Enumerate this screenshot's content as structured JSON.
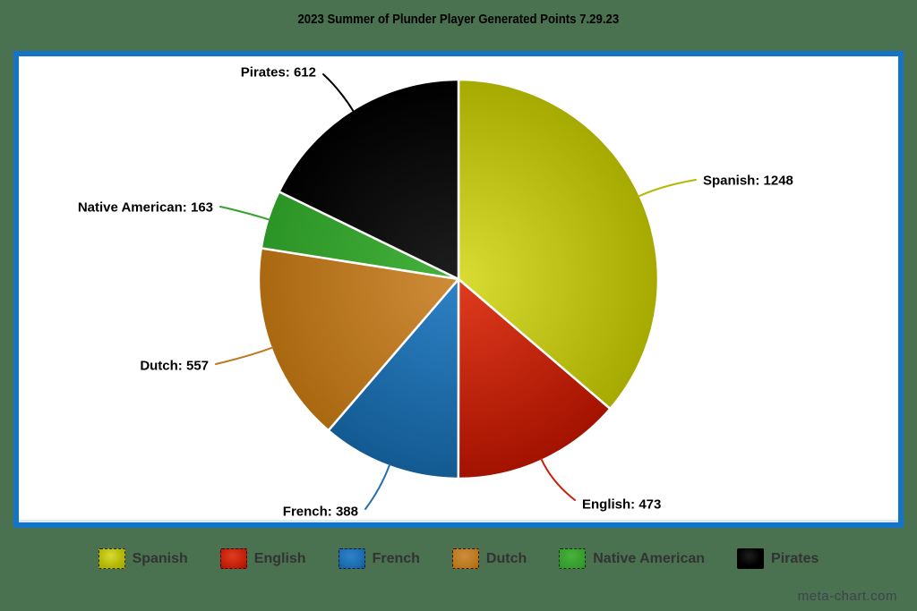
{
  "page": {
    "title": "2023 Summer of Plunder Player Generated Points 7.29.23",
    "watermark": "meta-chart.com",
    "background_color": "#4a7150",
    "chart_area_color": "#ffffff",
    "chart_border_color": "#1474c8"
  },
  "chart_data": {
    "type": "pie",
    "title": "2023 Summer of Plunder Player Generated Points 7.29.23",
    "total": 3441,
    "start_angle_deg": 0,
    "direction": "clockwise",
    "labels_format": "{label}: {value}",
    "legend_position": "bottom",
    "categories": [
      "Spanish",
      "English",
      "French",
      "Dutch",
      "Native American",
      "Pirates"
    ],
    "values": [
      1248,
      473,
      388,
      557,
      163,
      612
    ],
    "slices": [
      {
        "label": "Spanish",
        "value": 1248,
        "callout_text": "Spanish: 1248",
        "color": "#b4b806",
        "color_light": "#d8dc33",
        "color_dark": "#a6aa00"
      },
      {
        "label": "English",
        "value": 473,
        "callout_text": "English: 473",
        "color": "#c6220c",
        "color_light": "#e03c1e",
        "color_dark": "#a31200"
      },
      {
        "label": "French",
        "value": 388,
        "callout_text": "French: 388",
        "color": "#1d6fb2",
        "color_light": "#2e82c6",
        "color_dark": "#135a92"
      },
      {
        "label": "Dutch",
        "value": 557,
        "callout_text": "Dutch: 557",
        "color": "#bd7a22",
        "color_light": "#cf8c3a",
        "color_dark": "#a96810"
      },
      {
        "label": "Native American",
        "value": 163,
        "callout_text": "Native American: 163",
        "color": "#37a02e",
        "color_light": "#47b23c",
        "color_dark": "#2b9426"
      },
      {
        "label": "Pirates",
        "value": 612,
        "callout_text": "Pirates: 612",
        "color": "#000000",
        "color_light": "#1e1e1e",
        "color_dark": "#000000"
      }
    ],
    "label_text_color": "#000000",
    "legend_text_color": "#333333"
  }
}
